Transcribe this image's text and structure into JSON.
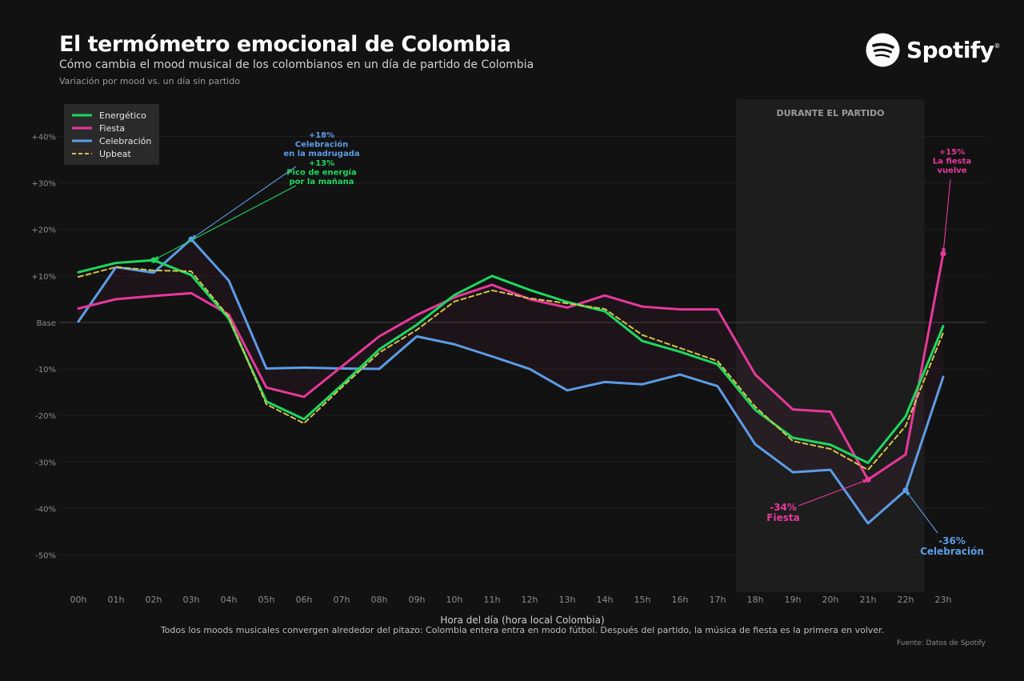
{
  "header": {
    "title": "El termómetro emocional de Colombia",
    "subtitle": "Cómo cambia el mood musical de los colombianos en un día de partido de Colombia",
    "note": "Variación por mood vs. un día sin partido"
  },
  "brand": {
    "name": "Spotify",
    "reg": "®"
  },
  "footer": {
    "caption": "Todos los moods musicales convergen alrededor del pitazo: Colombia entera entra en modo fútbol.  Después del partido, la música de fiesta es la primera en volver.",
    "source": "Fuente: Datos de Spotify"
  },
  "chart_data": {
    "type": "line",
    "xlabel": "Hora del día (hora local Colombia)",
    "ylabel": "",
    "x": [
      "00h",
      "01h",
      "02h",
      "03h",
      "04h",
      "05h",
      "06h",
      "07h",
      "08h",
      "09h",
      "10h",
      "11h",
      "12h",
      "13h",
      "14h",
      "15h",
      "16h",
      "17h",
      "18h",
      "19h",
      "20h",
      "21h",
      "22h",
      "23h"
    ],
    "ylim": [
      -58,
      48
    ],
    "yticks": [
      {
        "value": 40,
        "label": "+40%"
      },
      {
        "value": 30,
        "label": "+30%"
      },
      {
        "value": 20,
        "label": "+20%"
      },
      {
        "value": 10,
        "label": "+10%"
      },
      {
        "value": 0,
        "label": "Base"
      },
      {
        "value": -10,
        "label": "-10%"
      },
      {
        "value": -20,
        "label": "-20%"
      },
      {
        "value": -30,
        "label": "-30%"
      },
      {
        "value": -40,
        "label": "-40%"
      },
      {
        "value": -50,
        "label": "-50%"
      }
    ],
    "grid": true,
    "legend_position": "top-left",
    "series": [
      {
        "name": "Energético",
        "color": "#1ED760",
        "dash": false,
        "values": [
          10.8,
          12.8,
          13.4,
          10.2,
          0.8,
          -17,
          -20.8,
          -13.5,
          -5.8,
          -0.5,
          5.9,
          10,
          7,
          4.4,
          2.4,
          -4,
          -6.3,
          -9,
          -18.8,
          -24.8,
          -26.3,
          -30.2,
          -20.2,
          -0.8
        ]
      },
      {
        "name": "Fiesta",
        "color": "#E6399B",
        "dash": false,
        "values": [
          3,
          5,
          5.7,
          6.3,
          1.7,
          -14,
          -16,
          -9.5,
          -3,
          1.6,
          5.4,
          8.1,
          5,
          3.2,
          5.8,
          3.4,
          2.8,
          2.8,
          -11.2,
          -18.7,
          -19.2,
          -33.8,
          -28.4,
          14.8
        ]
      },
      {
        "name": "Celebración",
        "color": "#5C9CE6",
        "dash": false,
        "values": [
          0.2,
          11.9,
          10.7,
          17.9,
          9,
          -9.9,
          -9.7,
          -9.9,
          -10,
          -3,
          -4.7,
          -7.3,
          -10,
          -14.6,
          -12.8,
          -13.3,
          -11.2,
          -13.7,
          -26.2,
          -32.2,
          -31.7,
          -43.2,
          -36.1,
          -11.7
        ]
      },
      {
        "name": "Upbeat",
        "color": "#D4C34A",
        "dash": true,
        "values": [
          9.8,
          11.9,
          11.2,
          11,
          1.2,
          -17.6,
          -21.7,
          -14,
          -6.5,
          -1.6,
          4.5,
          6.9,
          5.2,
          4.1,
          2.9,
          -2.7,
          -5.5,
          -8.3,
          -18.1,
          -25.5,
          -27.2,
          -31.7,
          -22.3,
          -2.2
        ]
      }
    ],
    "shaded_region": {
      "label": "DURANTE EL PARTIDO",
      "from": 17.5,
      "to": 22.5
    },
    "annotations": [
      {
        "series": "Celebración",
        "x": 3,
        "lines": [
          "+18%",
          "Celebración",
          "en la madrugada"
        ],
        "color": "#5C9CE6"
      },
      {
        "series": "Energético",
        "x": 2,
        "lines": [
          "+13%",
          "Pico de energía",
          "por la mañana"
        ],
        "color": "#1ED760"
      },
      {
        "series": "Fiesta",
        "x": 23,
        "lines": [
          "+15%",
          "La fiesta",
          "vuelve"
        ],
        "color": "#E6399B"
      },
      {
        "series": "Fiesta",
        "x": 21,
        "lines": [
          "-34%",
          "Fiesta"
        ],
        "color": "#E6399B"
      },
      {
        "series": "Celebración",
        "x": 22,
        "lines": [
          "-36%",
          "Celebración"
        ],
        "color": "#5C9CE6"
      }
    ]
  }
}
